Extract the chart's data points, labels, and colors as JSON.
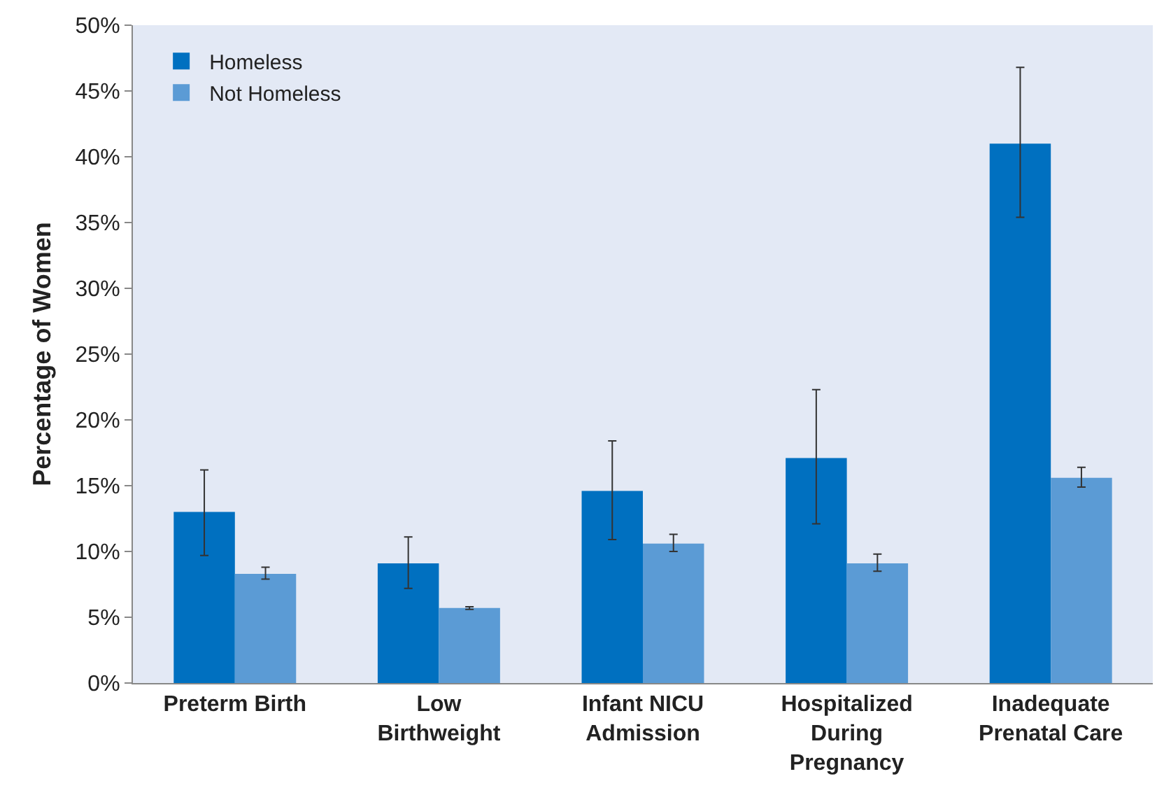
{
  "chart_data": {
    "type": "bar",
    "ylabel": "Percentage of Women",
    "categories": [
      "Preterm Birth",
      "Low Birthweight",
      "Infant NICU Admission",
      "Hospitalized During Pregnancy",
      "Inadequate Prenatal Care"
    ],
    "series": [
      {
        "name": "Homeless",
        "color": "#0070c0",
        "values": [
          13.0,
          9.1,
          14.6,
          17.1,
          41.0
        ],
        "errors": [
          [
            9.7,
            16.2
          ],
          [
            7.2,
            11.1
          ],
          [
            10.9,
            18.4
          ],
          [
            12.1,
            22.3
          ],
          [
            35.4,
            46.8
          ]
        ]
      },
      {
        "name": "Not Homeless",
        "color": "#5b9bd5",
        "values": [
          8.3,
          5.7,
          10.6,
          9.1,
          15.6
        ],
        "errors": [
          [
            7.9,
            8.8
          ],
          [
            5.6,
            5.8
          ],
          [
            10.0,
            11.3
          ],
          [
            8.5,
            9.8
          ],
          [
            14.9,
            16.4
          ]
        ]
      }
    ],
    "ylim": [
      0,
      50
    ],
    "yticks": [
      {
        "value": 0,
        "label": "0%"
      },
      {
        "value": 5,
        "label": "5%"
      },
      {
        "value": 10,
        "label": "10%"
      },
      {
        "value": 15,
        "label": "15%"
      },
      {
        "value": 20,
        "label": "20%"
      },
      {
        "value": 25,
        "label": "25%"
      },
      {
        "value": 30,
        "label": "30%"
      },
      {
        "value": 35,
        "label": "35%"
      },
      {
        "value": 40,
        "label": "40%"
      },
      {
        "value": 45,
        "label": "45%"
      },
      {
        "value": 50,
        "label": "50%"
      }
    ],
    "grid": false,
    "legend": "top left"
  }
}
